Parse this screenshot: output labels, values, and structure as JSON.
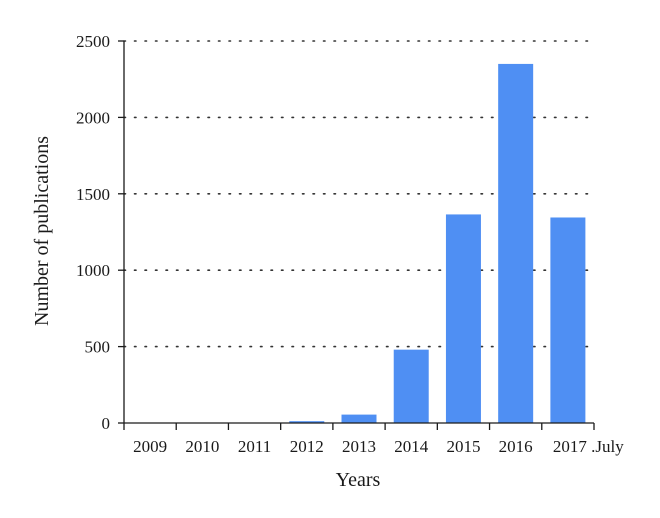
{
  "chart_data": {
    "type": "bar",
    "categories": [
      "2009",
      "2010",
      "2011",
      "2012",
      "2013",
      "2014",
      "2015",
      "2016",
      "2017 July"
    ],
    "category_labels": [
      "2009",
      "2010",
      "2011",
      "2012",
      "2013",
      "2014",
      "2015",
      "2016",
      "2017 .July"
    ],
    "values": [
      0,
      2,
      3,
      12,
      55,
      480,
      1365,
      2350,
      1345
    ],
    "title": "",
    "xlabel": "Years",
    "ylabel": "Number of publications",
    "ylim": [
      0,
      2500
    ],
    "yticks": [
      0,
      500,
      1000,
      1500,
      2000,
      2500
    ],
    "grid": true,
    "legend": "none",
    "bar_color": "#4f8ff3",
    "axis_color": "#1a1a1a"
  }
}
